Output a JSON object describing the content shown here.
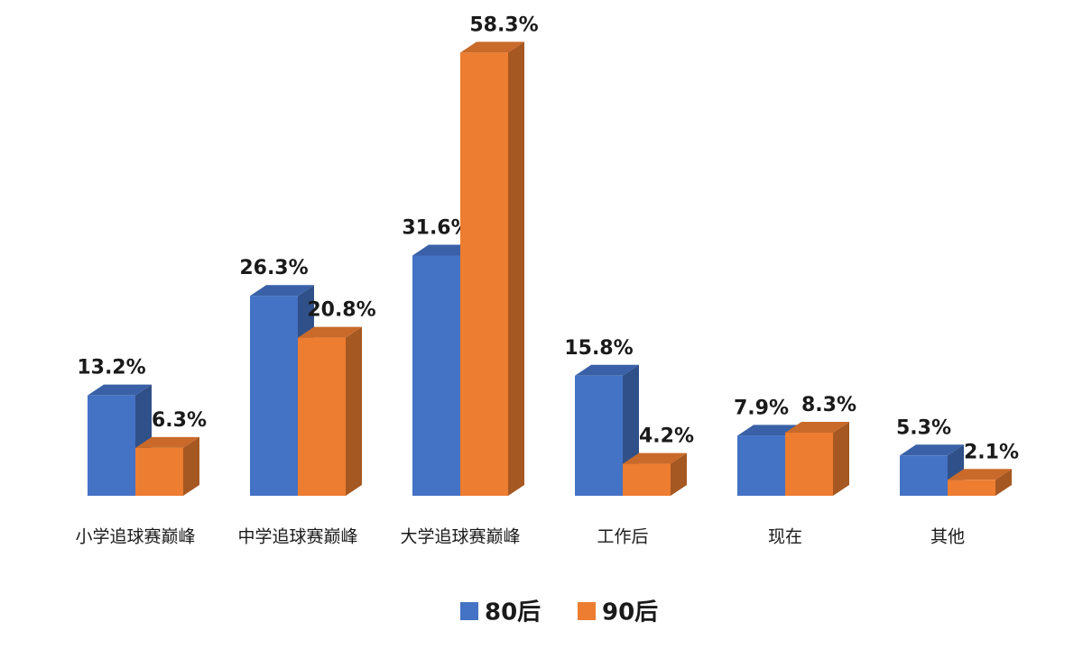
{
  "chart_data": {
    "type": "bar3d",
    "categories": [
      "小学追球赛巅峰",
      "中学追球赛巅峰",
      "大学追球赛巅峰",
      "工作后",
      "现在",
      "其他"
    ],
    "series": [
      {
        "name": "80后",
        "color": "#4472c4",
        "values": [
          13.2,
          26.3,
          31.6,
          15.8,
          7.9,
          5.3
        ],
        "value_labels": [
          "13.2%",
          "26.3%",
          "31.6%",
          "15.8%",
          "7.9%",
          "5.3%"
        ]
      },
      {
        "name": "90后",
        "color": "#ed7d31",
        "values": [
          6.3,
          20.8,
          58.3,
          4.2,
          8.3,
          2.1
        ],
        "value_labels": [
          "6.3%",
          "20.8%",
          "58.3%",
          "4.2%",
          "8.3%",
          "2.1%"
        ]
      }
    ],
    "ylim": [
      0,
      60
    ],
    "legend": "bottom"
  }
}
